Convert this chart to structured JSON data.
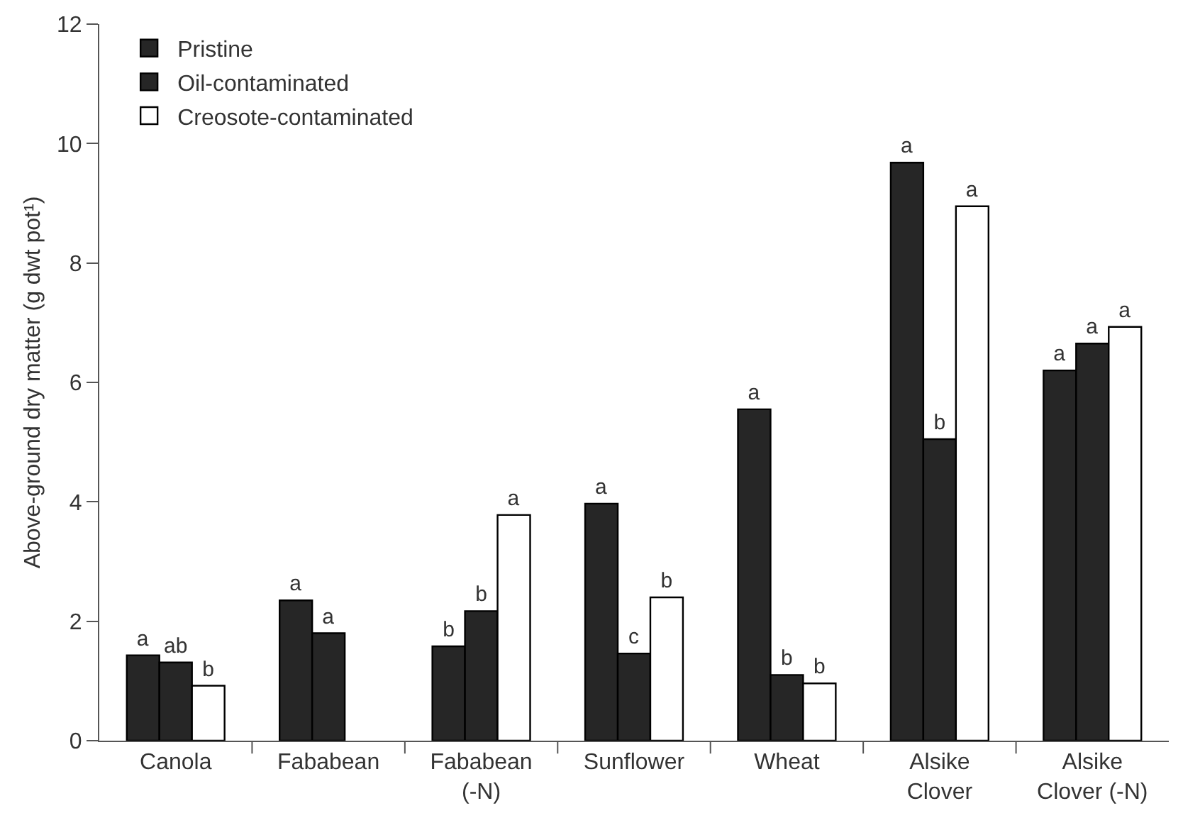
{
  "chart_data": {
    "type": "bar",
    "ylabel": "Above-ground dry matter (g dwt pot¹)",
    "categories": [
      "Canola",
      "Fababean",
      "Fababean\n(-N)",
      "Sunflower",
      "Wheat",
      "Alsike\nClover",
      "Alsike\nClover (-N)"
    ],
    "series": [
      {
        "name": "Pristine",
        "color": "#262626",
        "values": [
          1.43,
          2.35,
          1.58,
          3.97,
          5.55,
          9.68,
          6.2
        ],
        "value_labels": [
          "a",
          "a",
          "b",
          "a",
          "a",
          "a",
          "a"
        ]
      },
      {
        "name": "Oil-contaminated",
        "color": "#262626",
        "values": [
          1.31,
          1.8,
          2.17,
          1.46,
          1.1,
          5.05,
          6.65
        ],
        "value_labels": [
          "ab",
          "a",
          "b",
          "c",
          "b",
          "b",
          "a"
        ]
      },
      {
        "name": "Creosote-contaminated",
        "color": "#ffffff",
        "values": [
          0.92,
          null,
          3.78,
          2.4,
          0.96,
          8.95,
          6.93
        ],
        "value_labels": [
          "b",
          null,
          "a",
          "b",
          "b",
          "a",
          "a"
        ]
      }
    ],
    "ylim": [
      0,
      12
    ],
    "yticks": [
      0,
      2,
      4,
      6,
      8,
      10,
      12
    ],
    "grid": false,
    "legend": "top left"
  }
}
